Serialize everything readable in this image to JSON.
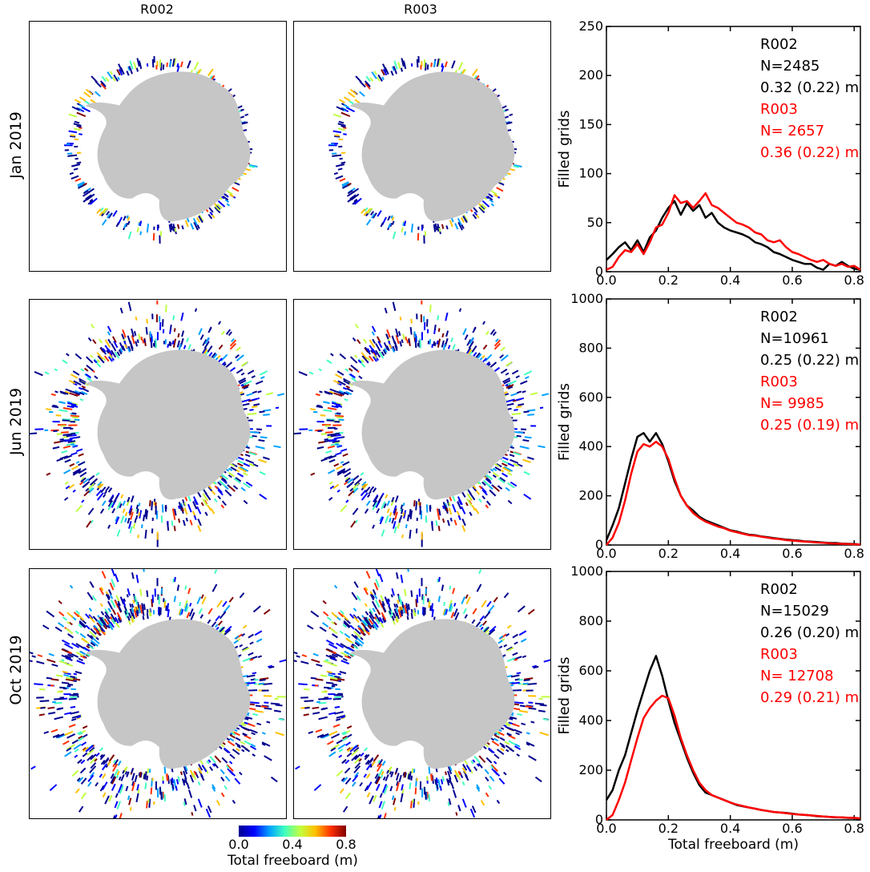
{
  "columns": [
    "R002",
    "R003"
  ],
  "rows": [
    "Jan 2019",
    "Jun 2019",
    "Oct 2019"
  ],
  "colorbar": {
    "ticks": [
      "0.0",
      "0.4",
      "0.8"
    ],
    "label": "Total freeboard (m)",
    "colors": [
      "#00008f",
      "#0000ff",
      "#00a0ff",
      "#40ffc0",
      "#c0ff40",
      "#ffc000",
      "#ff3000",
      "#800000"
    ]
  },
  "colors": {
    "R002": "#000000",
    "R003": "#ff0000",
    "land": "#c6c6c6"
  },
  "chart_data": [
    {
      "type": "line",
      "title": "",
      "xlabel": "",
      "ylabel": "Filled grids",
      "xlim": [
        0,
        0.82
      ],
      "ylim": [
        0,
        250
      ],
      "xticks": [
        "0.0",
        "0.2",
        "0.4",
        "0.6",
        "0.8"
      ],
      "yticks": [
        "0",
        "50",
        "100",
        "150",
        "200",
        "250"
      ],
      "legend": [
        "R002",
        "N=2485",
        "0.32 (0.22) m",
        "R003",
        "N= 2657",
        "0.36 (0.22) m"
      ],
      "series": [
        {
          "name": "R002",
          "color": "#000000",
          "x": [
            0.0,
            0.02,
            0.04,
            0.06,
            0.08,
            0.1,
            0.12,
            0.14,
            0.16,
            0.18,
            0.2,
            0.22,
            0.24,
            0.26,
            0.28,
            0.3,
            0.32,
            0.34,
            0.36,
            0.38,
            0.4,
            0.42,
            0.44,
            0.46,
            0.48,
            0.5,
            0.52,
            0.54,
            0.56,
            0.58,
            0.6,
            0.62,
            0.64,
            0.66,
            0.68,
            0.7,
            0.72,
            0.74,
            0.76,
            0.78,
            0.8,
            0.82
          ],
          "y": [
            12,
            18,
            25,
            30,
            22,
            32,
            20,
            35,
            42,
            55,
            65,
            72,
            58,
            70,
            62,
            68,
            55,
            60,
            50,
            45,
            42,
            40,
            38,
            35,
            30,
            28,
            25,
            20,
            18,
            15,
            12,
            10,
            8,
            8,
            4,
            2,
            8,
            6,
            10,
            6,
            3,
            2
          ]
        },
        {
          "name": "R003",
          "color": "#ff0000",
          "x": [
            0.0,
            0.02,
            0.04,
            0.06,
            0.08,
            0.1,
            0.12,
            0.14,
            0.16,
            0.18,
            0.2,
            0.22,
            0.24,
            0.26,
            0.28,
            0.3,
            0.32,
            0.34,
            0.36,
            0.38,
            0.4,
            0.42,
            0.44,
            0.46,
            0.48,
            0.5,
            0.52,
            0.54,
            0.56,
            0.58,
            0.6,
            0.62,
            0.64,
            0.66,
            0.68,
            0.7,
            0.72,
            0.74,
            0.76,
            0.78,
            0.8,
            0.82
          ],
          "y": [
            2,
            5,
            15,
            22,
            20,
            28,
            18,
            30,
            45,
            48,
            60,
            78,
            70,
            72,
            65,
            72,
            80,
            68,
            65,
            60,
            55,
            50,
            48,
            45,
            40,
            38,
            32,
            30,
            32,
            25,
            20,
            18,
            15,
            12,
            10,
            12,
            8,
            6,
            8,
            5,
            6,
            2
          ]
        }
      ]
    },
    {
      "type": "line",
      "title": "",
      "xlabel": "",
      "ylabel": "Filled grids",
      "xlim": [
        0,
        0.82
      ],
      "ylim": [
        0,
        1000
      ],
      "xticks": [
        "0.0",
        "0.2",
        "0.4",
        "0.6",
        "0.8"
      ],
      "yticks": [
        "0",
        "200",
        "400",
        "600",
        "800",
        "1000"
      ],
      "legend": [
        "R002",
        "N=10961",
        "0.25 (0.22) m",
        "R003",
        "N= 9985",
        "0.25 (0.19) m"
      ],
      "series": [
        {
          "name": "R002",
          "color": "#000000",
          "x": [
            0.0,
            0.02,
            0.04,
            0.06,
            0.08,
            0.1,
            0.12,
            0.14,
            0.16,
            0.18,
            0.2,
            0.22,
            0.24,
            0.26,
            0.28,
            0.3,
            0.32,
            0.34,
            0.36,
            0.38,
            0.4,
            0.42,
            0.44,
            0.46,
            0.48,
            0.5,
            0.52,
            0.54,
            0.56,
            0.58,
            0.6,
            0.62,
            0.64,
            0.66,
            0.68,
            0.7,
            0.72,
            0.74,
            0.76,
            0.78,
            0.8,
            0.82
          ],
          "y": [
            20,
            80,
            150,
            250,
            350,
            440,
            455,
            420,
            455,
            410,
            340,
            260,
            200,
            160,
            140,
            115,
            100,
            90,
            80,
            70,
            60,
            55,
            48,
            42,
            40,
            35,
            32,
            28,
            25,
            22,
            20,
            18,
            15,
            14,
            12,
            10,
            8,
            8,
            6,
            5,
            4,
            2
          ]
        },
        {
          "name": "R003",
          "color": "#ff0000",
          "x": [
            0.0,
            0.02,
            0.04,
            0.06,
            0.08,
            0.1,
            0.12,
            0.14,
            0.16,
            0.18,
            0.2,
            0.22,
            0.24,
            0.26,
            0.28,
            0.3,
            0.32,
            0.34,
            0.36,
            0.38,
            0.4,
            0.42,
            0.44,
            0.46,
            0.48,
            0.5,
            0.52,
            0.54,
            0.56,
            0.58,
            0.6,
            0.62,
            0.64,
            0.66,
            0.68,
            0.7,
            0.72,
            0.74,
            0.76,
            0.78,
            0.8,
            0.82
          ],
          "y": [
            0,
            30,
            90,
            180,
            290,
            380,
            410,
            400,
            420,
            400,
            350,
            270,
            200,
            160,
            130,
            110,
            95,
            85,
            75,
            68,
            58,
            52,
            46,
            40,
            38,
            34,
            30,
            26,
            24,
            20,
            18,
            16,
            14,
            12,
            10,
            9,
            7,
            6,
            5,
            4,
            3,
            2
          ]
        }
      ]
    },
    {
      "type": "line",
      "title": "",
      "xlabel": "Total freeboard (m)",
      "ylabel": "Filled grids",
      "xlim": [
        0,
        0.82
      ],
      "ylim": [
        0,
        1000
      ],
      "xticks": [
        "0.0",
        "0.2",
        "0.4",
        "0.6",
        "0.8"
      ],
      "yticks": [
        "0",
        "200",
        "400",
        "600",
        "800",
        "1000"
      ],
      "legend": [
        "R002",
        "N=15029",
        "0.26 (0.20) m",
        "R003",
        "N= 12708",
        "0.29 (0.21) m"
      ],
      "series": [
        {
          "name": "R002",
          "color": "#000000",
          "x": [
            0.0,
            0.02,
            0.04,
            0.06,
            0.08,
            0.1,
            0.12,
            0.14,
            0.16,
            0.18,
            0.2,
            0.22,
            0.24,
            0.26,
            0.28,
            0.3,
            0.32,
            0.34,
            0.36,
            0.38,
            0.4,
            0.42,
            0.44,
            0.46,
            0.48,
            0.5,
            0.52,
            0.54,
            0.56,
            0.58,
            0.6,
            0.62,
            0.64,
            0.66,
            0.68,
            0.7,
            0.72,
            0.74,
            0.76,
            0.78,
            0.8,
            0.82
          ],
          "y": [
            80,
            120,
            200,
            260,
            350,
            440,
            520,
            600,
            660,
            580,
            480,
            390,
            320,
            250,
            190,
            140,
            110,
            100,
            90,
            80,
            70,
            60,
            55,
            50,
            45,
            40,
            36,
            32,
            30,
            28,
            25,
            22,
            20,
            18,
            15,
            14,
            12,
            10,
            10,
            8,
            8,
            6
          ]
        },
        {
          "name": "R003",
          "color": "#ff0000",
          "x": [
            0.0,
            0.02,
            0.04,
            0.06,
            0.08,
            0.1,
            0.12,
            0.14,
            0.16,
            0.18,
            0.2,
            0.22,
            0.24,
            0.26,
            0.28,
            0.3,
            0.32,
            0.34,
            0.36,
            0.38,
            0.4,
            0.42,
            0.44,
            0.46,
            0.48,
            0.5,
            0.52,
            0.54,
            0.56,
            0.58,
            0.6,
            0.62,
            0.64,
            0.66,
            0.68,
            0.7,
            0.72,
            0.74,
            0.76,
            0.78,
            0.8,
            0.82
          ],
          "y": [
            0,
            20,
            80,
            150,
            240,
            330,
            410,
            450,
            480,
            500,
            490,
            420,
            330,
            260,
            200,
            150,
            120,
            100,
            90,
            80,
            70,
            62,
            56,
            50,
            45,
            40,
            36,
            32,
            30,
            27,
            24,
            22,
            20,
            18,
            16,
            14,
            12,
            11,
            10,
            9,
            8,
            6
          ]
        }
      ]
    }
  ]
}
